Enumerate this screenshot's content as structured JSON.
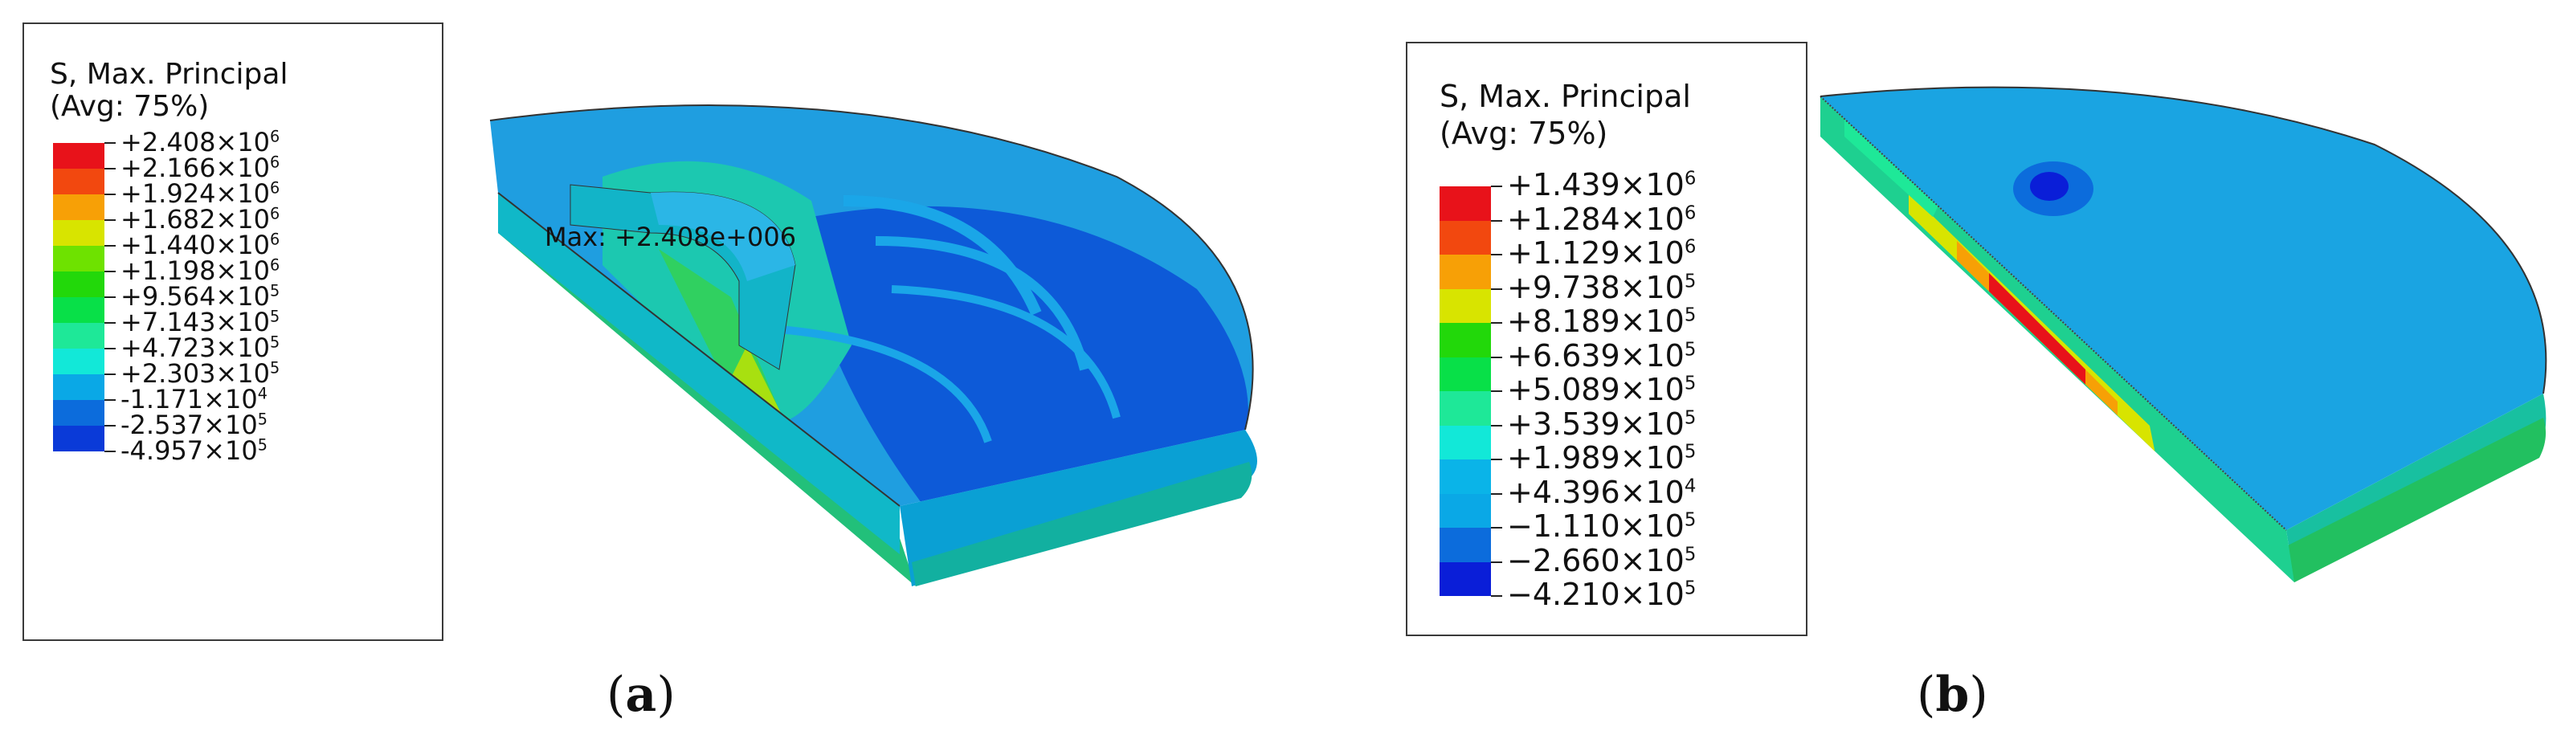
{
  "panel_a": {
    "legend": {
      "title_line1": "S, Max. Principal",
      "title_line2": "(Avg: 75%)",
      "entries": [
        {
          "mantissa": "+2.408",
          "exp": "6"
        },
        {
          "mantissa": "+2.166",
          "exp": "6"
        },
        {
          "mantissa": "+1.924",
          "exp": "6"
        },
        {
          "mantissa": "+1.682",
          "exp": "6"
        },
        {
          "mantissa": "+1.440",
          "exp": "6"
        },
        {
          "mantissa": "+1.198",
          "exp": "6"
        },
        {
          "mantissa": "+9.564",
          "exp": "5"
        },
        {
          "mantissa": "+7.143",
          "exp": "5"
        },
        {
          "mantissa": "+4.723",
          "exp": "5"
        },
        {
          "mantissa": "+2.303",
          "exp": "5"
        },
        {
          "mantissa": "-1.171",
          "exp": "4"
        },
        {
          "mantissa": "-2.537",
          "exp": "5"
        },
        {
          "mantissa": "-4.957",
          "exp": "5"
        }
      ],
      "colors": [
        "#e8121a",
        "#f2480f",
        "#f7a006",
        "#d8e400",
        "#6ee200",
        "#22d80a",
        "#08e048",
        "#1ee898",
        "#12e8d8",
        "#0aa8e6",
        "#0c6cdc",
        "#0a3ad8"
      ]
    },
    "annotation": "Max: +2.408e+006",
    "caption_letter": "a"
  },
  "panel_b": {
    "legend": {
      "title_line1": "S, Max. Principal",
      "title_line2": "(Avg: 75%)",
      "entries": [
        {
          "mantissa": "+1.439",
          "exp": "6"
        },
        {
          "mantissa": "+1.284",
          "exp": "6"
        },
        {
          "mantissa": "+1.129",
          "exp": "6"
        },
        {
          "mantissa": "+9.738",
          "exp": "5"
        },
        {
          "mantissa": "+8.189",
          "exp": "5"
        },
        {
          "mantissa": "+6.639",
          "exp": "5"
        },
        {
          "mantissa": "+5.089",
          "exp": "5"
        },
        {
          "mantissa": "+3.539",
          "exp": "5"
        },
        {
          "mantissa": "+1.989",
          "exp": "5"
        },
        {
          "mantissa": "+4.396",
          "exp": "4"
        },
        {
          "mantissa": "−1.110",
          "exp": "5"
        },
        {
          "mantissa": "−2.660",
          "exp": "5"
        },
        {
          "mantissa": "−4.210",
          "exp": "5"
        }
      ],
      "colors": [
        "#e8121a",
        "#f2480f",
        "#f7a006",
        "#d8e400",
        "#22d80a",
        "#08e048",
        "#1ee898",
        "#12e8d8",
        "#0ab4e8",
        "#0aa8e6",
        "#0c6cdc",
        "#0a1ed8"
      ]
    },
    "caption_letter": "b"
  }
}
